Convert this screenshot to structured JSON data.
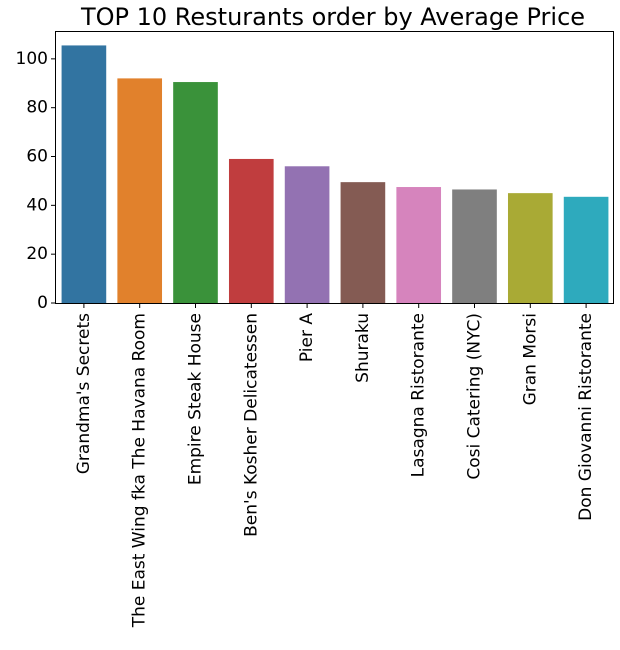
{
  "chart_data": {
    "type": "bar",
    "title": "TOP 10 Resturants order by Average Price",
    "xlabel": "",
    "ylabel": "",
    "categories": [
      "Grandma's Secrets",
      "The East Wing fka The Havana Room",
      "Empire Steak House",
      "Ben's Kosher Delicatessen",
      "Pier A",
      "Shuraku",
      "Lasagna Ristorante",
      "Cosi Catering (NYC)",
      "Gran Morsi",
      "Don Giovanni Ristorante"
    ],
    "values": [
      105.5,
      92,
      90.5,
      59,
      56,
      49.5,
      47.5,
      46.5,
      45,
      43.5
    ],
    "colors": [
      "#3274a1",
      "#e1812c",
      "#3a923a",
      "#c03d3e",
      "#9372b2",
      "#845b53",
      "#d684bd",
      "#7f7f7f",
      "#a9aa35",
      "#2eaabd"
    ],
    "ylim": [
      0,
      111
    ],
    "yticks": [
      0,
      20,
      40,
      60,
      80,
      100
    ],
    "grid": false,
    "legend": "none"
  }
}
